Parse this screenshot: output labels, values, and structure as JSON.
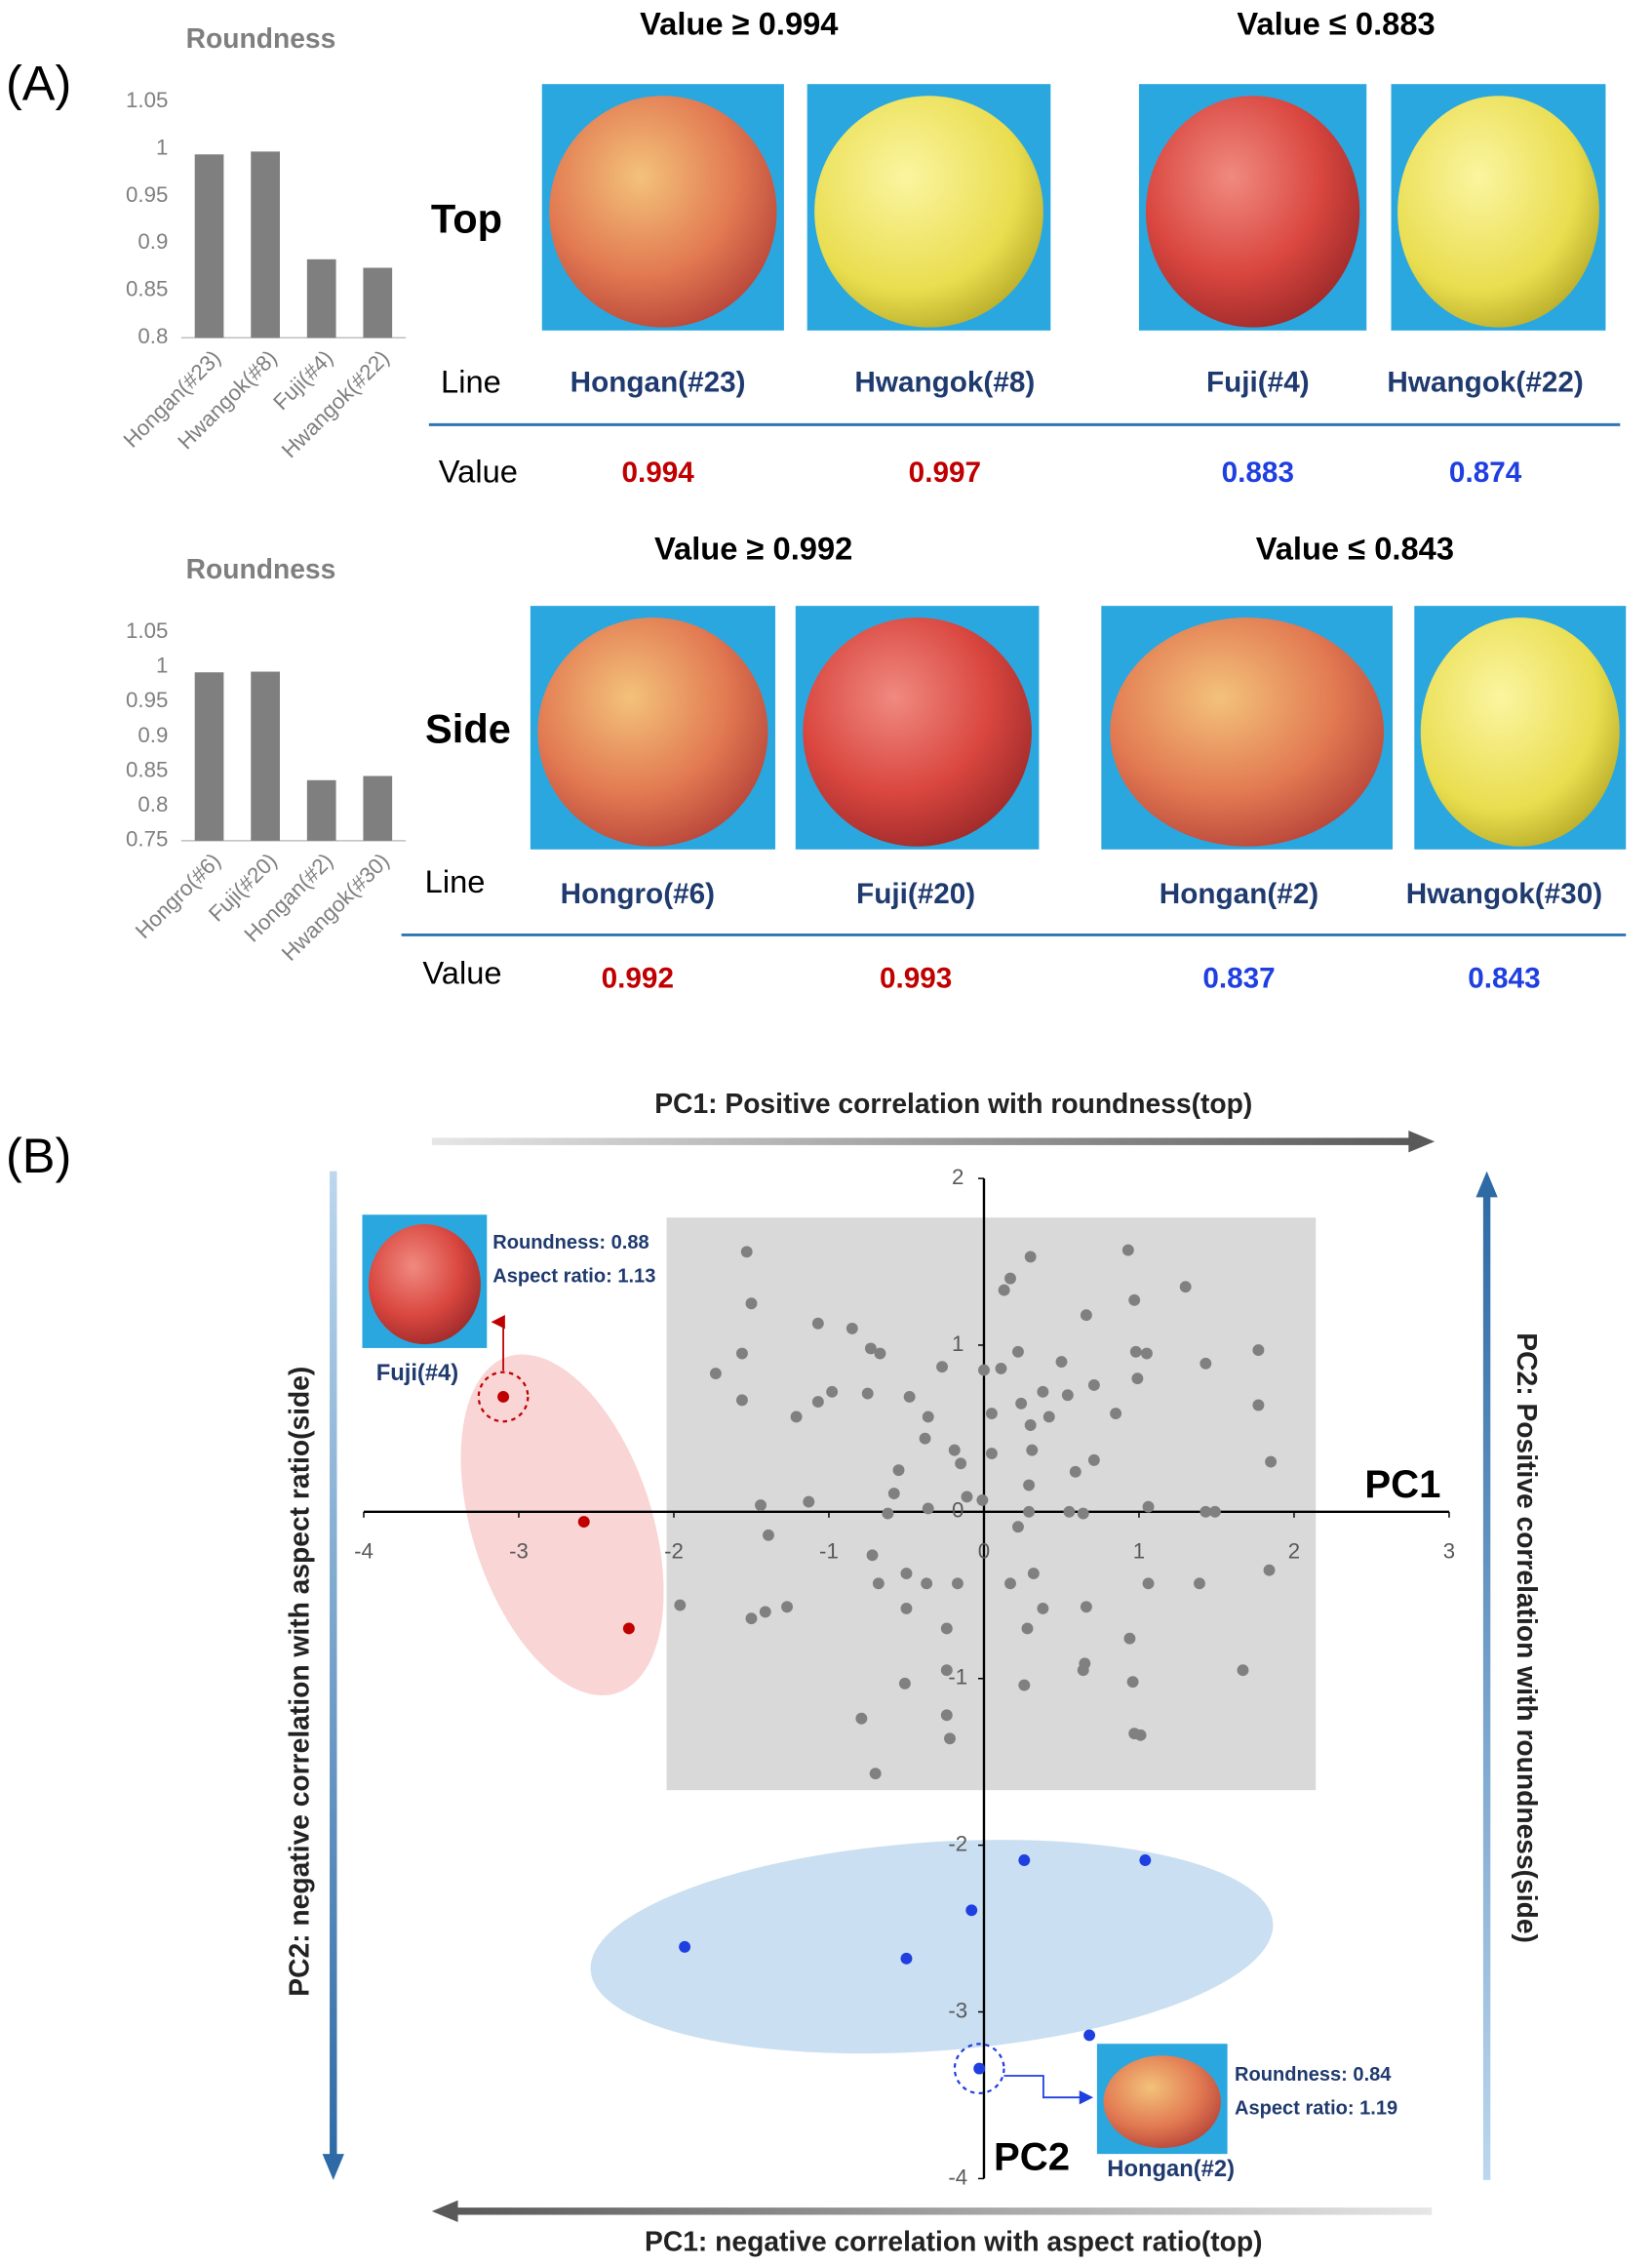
{
  "panel_labels": [
    "(A)",
    "(B)"
  ],
  "panel_a": [
    {
      "view": "Top",
      "line_label": "Line",
      "value_label": "Value",
      "groups": [
        {
          "header": "Value ≥ 0.994",
          "items": [
            {
              "line": "Hongan(#23)",
              "value": "0.994"
            },
            {
              "line": "Hwangok(#8)",
              "value": "0.997"
            }
          ]
        },
        {
          "header": "Value ≤ 0.883",
          "items": [
            {
              "line": "Fuji(#4)",
              "value": "0.883"
            },
            {
              "line": "Hwangok(#22)",
              "value": "0.874"
            }
          ]
        }
      ]
    },
    {
      "view": "Side",
      "line_label": "Line",
      "value_label": "Value",
      "groups": [
        {
          "header": "Value ≥ 0.992",
          "items": [
            {
              "line": "Hongro(#6)",
              "value": "0.992"
            },
            {
              "line": "Fuji(#20)",
              "value": "0.993"
            }
          ]
        },
        {
          "header": "Value ≤ 0.843",
          "items": [
            {
              "line": "Hongan(#2)",
              "value": "0.837"
            },
            {
              "line": "Hwangok(#30)",
              "value": "0.843"
            }
          ]
        }
      ]
    }
  ],
  "chart_data": [
    {
      "type": "bar",
      "title": "Roundness",
      "categories": [
        "Hongan(#23)",
        "Hwangok(#8)",
        "Fuji(#4)",
        "Hwangok(#22)"
      ],
      "values": [
        0.994,
        0.997,
        0.883,
        0.874
      ],
      "color": "#7f7f7f",
      "ylim": [
        0.8,
        1.05
      ],
      "yticks": [
        0.8,
        0.85,
        0.9,
        0.95,
        1,
        1.05
      ]
    },
    {
      "type": "bar",
      "title": "Roundness",
      "categories": [
        "Hongro(#6)",
        "Fuji(#20)",
        "Hongan(#2)",
        "Hwangok(#30)"
      ],
      "values": [
        0.992,
        0.993,
        0.837,
        0.843
      ],
      "color": "#7f7f7f",
      "ylim": [
        0.75,
        1.05
      ],
      "yticks": [
        0.75,
        0.8,
        0.85,
        0.9,
        0.95,
        1,
        1.05
      ]
    },
    {
      "type": "scatter",
      "x_label": "PC1",
      "y_label": "PC2",
      "top_label": "PC1: Positive correlation with roundness(top)",
      "bottom_label": "PC1: negative correlation with aspect ratio(top)",
      "left_label": "PC2: negative correlation with aspect ratio(side)",
      "right_label": "PC2: Positive correlation with roundness(side)",
      "xlim": [
        -4,
        3
      ],
      "ylim": [
        -4,
        2
      ],
      "xticks": [
        -4,
        -3,
        -2,
        -1,
        0,
        1,
        2,
        3
      ],
      "yticks": [
        -4,
        -3,
        -2,
        -1,
        0,
        1,
        2
      ],
      "callouts": [
        {
          "name": "Fuji(#4)",
          "lines": [
            "Roundness: 0.88",
            "Aspect ratio: 1.13"
          ]
        },
        {
          "name": "Hongan(#2)",
          "lines": [
            "Roundness: 0.84",
            "Aspect ratio: 1.19"
          ]
        }
      ],
      "series": [
        {
          "color": "#808080",
          "x": [
            -1.53,
            0.3,
            0.93,
            0.17,
            0.13,
            1.3,
            -1.5,
            0.97,
            0.66,
            -1.07,
            -0.85,
            -0.73,
            -0.67,
            -1.56,
            -0.27,
            0.98,
            1.05,
            0.22,
            0.5,
            -1.73,
            -0.98,
            -1.07,
            -1.21,
            -1.56,
            -0.75,
            -0.48,
            0.0,
            0.11,
            0.05,
            0.24,
            0.3,
            0.31,
            0.38,
            0.54,
            0.71,
            0.99,
            1.43,
            1.77,
            1.77,
            1.85,
            0.85,
            0.71,
            0.42,
            -0.36,
            -0.38,
            -0.19,
            -0.15,
            -0.11,
            0.05,
            -0.55,
            -0.58,
            -0.36,
            -0.62,
            -0.01,
            0.29,
            0.59,
            1.06,
            1.43,
            1.49,
            0.29,
            0.55,
            0.22,
            0.64,
            -1.44,
            -1.13,
            -1.39,
            -0.72,
            -0.68,
            -0.5,
            -1.96,
            -1.5,
            -1.41,
            -1.27,
            -0.5,
            -0.37,
            -0.17,
            0.17,
            0.32,
            0.38,
            0.66,
            1.06,
            1.39,
            1.84,
            0.28,
            -0.24,
            -0.24,
            0.65,
            0.64,
            0.94,
            1.67,
            -0.51,
            0.26,
            0.96,
            -0.24,
            -0.22,
            -0.79,
            -0.7,
            0.97,
            1.01
          ],
          "y": [
            1.56,
            1.53,
            1.57,
            1.4,
            1.33,
            1.35,
            1.25,
            1.27,
            1.18,
            1.13,
            1.1,
            0.98,
            0.95,
            0.95,
            0.87,
            0.96,
            0.95,
            0.96,
            0.9,
            0.83,
            0.72,
            0.66,
            0.57,
            0.67,
            0.71,
            0.69,
            0.85,
            0.86,
            0.59,
            0.65,
            0.52,
            0.37,
            0.72,
            0.7,
            0.76,
            0.8,
            0.89,
            0.97,
            0.64,
            0.3,
            0.59,
            0.31,
            0.57,
            0.57,
            0.44,
            0.37,
            0.29,
            0.09,
            0.35,
            0.25,
            0.11,
            0.02,
            -0.01,
            0.07,
            0.16,
            0.24,
            0.03,
            0.0,
            0.0,
            0.0,
            0.0,
            -0.09,
            -0.01,
            0.04,
            0.06,
            -0.14,
            -0.26,
            -0.43,
            -0.37,
            -0.56,
            -0.64,
            -0.6,
            -0.57,
            -0.58,
            -0.43,
            -0.43,
            -0.43,
            -0.37,
            -0.58,
            -0.57,
            -0.43,
            -0.43,
            -0.35,
            -0.7,
            -0.7,
            -0.95,
            -0.91,
            -0.95,
            -0.76,
            -0.95,
            -1.03,
            -1.04,
            -1.02,
            -1.22,
            -1.36,
            -1.24,
            -1.57,
            -1.33,
            -1.34
          ]
        },
        {
          "color": "#c00000",
          "x": [
            -3.1,
            -2.58,
            -2.29
          ],
          "y": [
            0.69,
            -0.06,
            -0.7
          ]
        },
        {
          "color": "#1f3fe0",
          "x": [
            -1.93,
            -0.5,
            -0.08,
            0.26,
            1.04,
            0.68,
            -0.03
          ],
          "y": [
            -2.61,
            -2.68,
            -2.39,
            -2.09,
            -2.09,
            -3.14,
            -3.34
          ]
        }
      ]
    }
  ]
}
